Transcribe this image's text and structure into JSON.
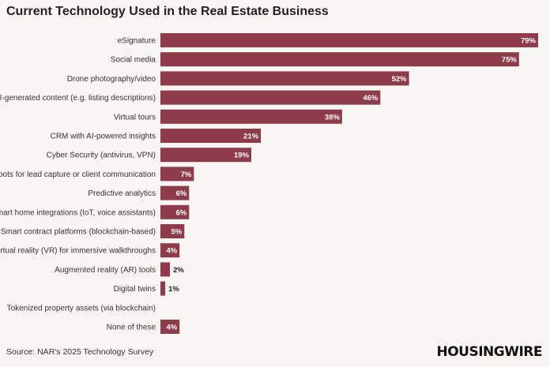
{
  "page": {
    "title": "Current Technology Used in the Real Estate Business",
    "source": "Source: NAR's 2025 Technology Survey",
    "brand": "HOUSINGWIRE"
  },
  "colors": {
    "bar": "#8e3b4b",
    "background": "#f7f6f2",
    "label": "#333333",
    "value_inside": "#ffffff",
    "value_outside": "#222222"
  },
  "chart_data": {
    "type": "bar",
    "orientation": "horizontal",
    "title": "Current Technology Used in the Real Estate Business",
    "xlabel": "",
    "ylabel": "",
    "xlim": [
      0,
      79
    ],
    "grid": false,
    "categories": [
      "eSignature",
      "Social media",
      "Drone photography/video",
      "AI-generated content (e.g. listing descriptions)",
      "Virtual tours",
      "CRM with AI-powered insights",
      "Cyber Security (antivirus, VPN)",
      "Chatbots for lead capture or client communication",
      "Predictive analytics",
      "Smart home integrations (IoT, voice assistants)",
      "Smart contract platforms (blockchain-based)",
      "Virtual reality (VR) for immersive walkthroughs",
      "Augmented reality (AR) tools",
      "Digital twins",
      "Tokenized property assets (via blockchain)",
      "None of these"
    ],
    "values": [
      79,
      75,
      52,
      46,
      38,
      21,
      19,
      7,
      6,
      6,
      5,
      4,
      2,
      1,
      0,
      4
    ],
    "value_labels": [
      "79%",
      "75%",
      "52%",
      "46%",
      "38%",
      "21%",
      "19%",
      "7%",
      "6%",
      "6%",
      "5%",
      "4%",
      "2%",
      "1%",
      "",
      "4%"
    ]
  }
}
